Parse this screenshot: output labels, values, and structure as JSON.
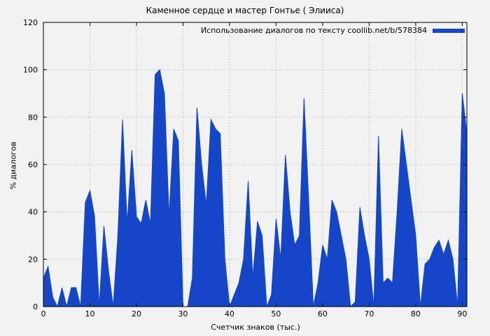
{
  "chart_data": {
    "type": "area",
    "title": "Каменное сердце и мастер Гонтье ( Элииса)",
    "legend": "Использование диалогов по тексту coollib.net/b/578384",
    "xlabel": "Счетчик знаков (тыс.)",
    "ylabel": "% диалогов",
    "xlim": [
      0,
      91
    ],
    "ylim": [
      0,
      120
    ],
    "xticks": [
      0,
      10,
      20,
      30,
      40,
      50,
      60,
      70,
      80,
      90
    ],
    "yticks": [
      0,
      20,
      40,
      60,
      80,
      100,
      120
    ],
    "grid": true,
    "legend_position": "top-right",
    "fill_color": "#1546c8",
    "grid_color": "#a8a8a8",
    "x": [
      0,
      1,
      2,
      3,
      4,
      5,
      6,
      7,
      8,
      9,
      10,
      11,
      12,
      13,
      14,
      15,
      16,
      17,
      18,
      19,
      20,
      21,
      22,
      23,
      24,
      25,
      26,
      27,
      28,
      29,
      30,
      31,
      32,
      33,
      34,
      35,
      36,
      37,
      38,
      39,
      40,
      41,
      42,
      43,
      44,
      45,
      46,
      47,
      48,
      49,
      50,
      51,
      52,
      53,
      54,
      55,
      56,
      57,
      58,
      59,
      60,
      61,
      62,
      63,
      64,
      65,
      66,
      67,
      68,
      69,
      70,
      71,
      72,
      73,
      74,
      75,
      76,
      77,
      78,
      79,
      80,
      81,
      82,
      83,
      84,
      85,
      86,
      87,
      88,
      89,
      90,
      91
    ],
    "y": [
      12,
      17,
      4,
      0,
      8,
      0,
      8,
      8,
      0,
      44,
      49,
      38,
      0,
      34,
      15,
      0,
      30,
      79,
      35,
      66,
      38,
      35,
      45,
      35,
      98,
      100,
      90,
      38,
      75,
      70,
      0,
      0,
      12,
      84,
      60,
      43,
      79,
      75,
      73,
      20,
      0,
      5,
      10,
      20,
      53,
      12,
      36,
      30,
      0,
      5,
      37,
      20,
      64,
      40,
      26,
      30,
      88,
      45,
      0,
      10,
      26,
      20,
      45,
      40,
      30,
      20,
      0,
      2,
      42,
      30,
      20,
      0,
      72,
      10,
      12,
      10,
      40,
      75,
      60,
      45,
      30,
      0,
      18,
      20,
      25,
      28,
      22,
      28,
      20,
      0,
      90,
      73
    ]
  }
}
